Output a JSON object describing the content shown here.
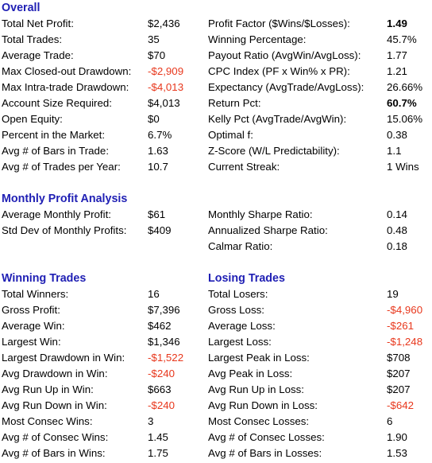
{
  "colors": {
    "heading": "#1f1fb4",
    "negative": "#e8371c",
    "text": "#000000",
    "background": "#ffffff"
  },
  "overall": {
    "title": "Overall",
    "left": [
      {
        "label": "Total Net Profit:",
        "value": "$2,436"
      },
      {
        "label": "Total Trades:",
        "value": "35"
      },
      {
        "label": "Average Trade:",
        "value": "$70"
      },
      {
        "label": "Max Closed-out Drawdown:",
        "value": "-$2,909"
      },
      {
        "label": "Max Intra-trade Drawdown:",
        "value": "-$4,013"
      },
      {
        "label": "Account Size Required:",
        "value": "$4,013"
      },
      {
        "label": "Open Equity:",
        "value": "$0"
      },
      {
        "label": "Percent in the Market:",
        "value": "6.7%"
      },
      {
        "label": "Avg # of Bars in Trade:",
        "value": "1.63"
      },
      {
        "label": "Avg # of Trades per Year:",
        "value": "10.7"
      }
    ],
    "right": [
      {
        "label": "Profit Factor ($Wins/$Losses):",
        "value": "1.49"
      },
      {
        "label": "Winning Percentage:",
        "value": "45.7%"
      },
      {
        "label": "Payout Ratio (AvgWin/AvgLoss):",
        "value": "1.77"
      },
      {
        "label": "CPC Index (PF x Win% x PR):",
        "value": "1.21"
      },
      {
        "label": "Expectancy (AvgTrade/AvgLoss):",
        "value": "26.66%"
      },
      {
        "label": "Return Pct:",
        "value": "60.7%"
      },
      {
        "label": "Kelly Pct (AvgTrade/AvgWin):",
        "value": "15.06%"
      },
      {
        "label": "Optimal f:",
        "value": "0.38"
      },
      {
        "label": "Z-Score (W/L Predictability):",
        "value": "1.1"
      },
      {
        "label": "Current Streak:",
        "value": "1 Wins"
      }
    ]
  },
  "monthly": {
    "title": "Monthly Profit Analysis",
    "left": [
      {
        "label": "Average Monthly Profit:",
        "value": "$61"
      },
      {
        "label": "Std Dev of Monthly Profits:",
        "value": "$409"
      }
    ],
    "right": [
      {
        "label": "Monthly Sharpe Ratio:",
        "value": "0.14"
      },
      {
        "label": "Annualized Sharpe Ratio:",
        "value": "0.48"
      },
      {
        "label": "Calmar Ratio:",
        "value": "0.18"
      }
    ]
  },
  "winning": {
    "title": "Winning Trades",
    "rows": [
      {
        "label": "Total Winners:",
        "value": "16"
      },
      {
        "label": "Gross Profit:",
        "value": "$7,396"
      },
      {
        "label": "Average Win:",
        "value": "$462"
      },
      {
        "label": "Largest Win:",
        "value": "$1,346"
      },
      {
        "label": "Largest Drawdown in Win:",
        "value": "-$1,522"
      },
      {
        "label": "Avg Drawdown in Win:",
        "value": "-$240"
      },
      {
        "label": "Avg Run Up in Win:",
        "value": "$663"
      },
      {
        "label": "Avg Run Down in Win:",
        "value": "-$240"
      },
      {
        "label": "Most Consec Wins:",
        "value": "3"
      },
      {
        "label": "Avg # of Consec Wins:",
        "value": "1.45"
      },
      {
        "label": "Avg # of Bars in Wins:",
        "value": "1.75"
      }
    ]
  },
  "losing": {
    "title": "Losing Trades",
    "rows": [
      {
        "label": "Total Losers:",
        "value": "19"
      },
      {
        "label": "Gross Loss:",
        "value": "-$4,960"
      },
      {
        "label": "Average Loss:",
        "value": "-$261"
      },
      {
        "label": "Largest Loss:",
        "value": "-$1,248"
      },
      {
        "label": "Largest Peak in Loss:",
        "value": "$708"
      },
      {
        "label": "Avg Peak in Loss:",
        "value": "$207"
      },
      {
        "label": "Avg Run Up in Loss:",
        "value": "$207"
      },
      {
        "label": "Avg Run Down in Loss:",
        "value": "-$642"
      },
      {
        "label": "Most Consec Losses:",
        "value": "6"
      },
      {
        "label": "Avg # of Consec Losses:",
        "value": "1.90"
      },
      {
        "label": "Avg # of Bars in Losses:",
        "value": "1.53"
      }
    ]
  }
}
